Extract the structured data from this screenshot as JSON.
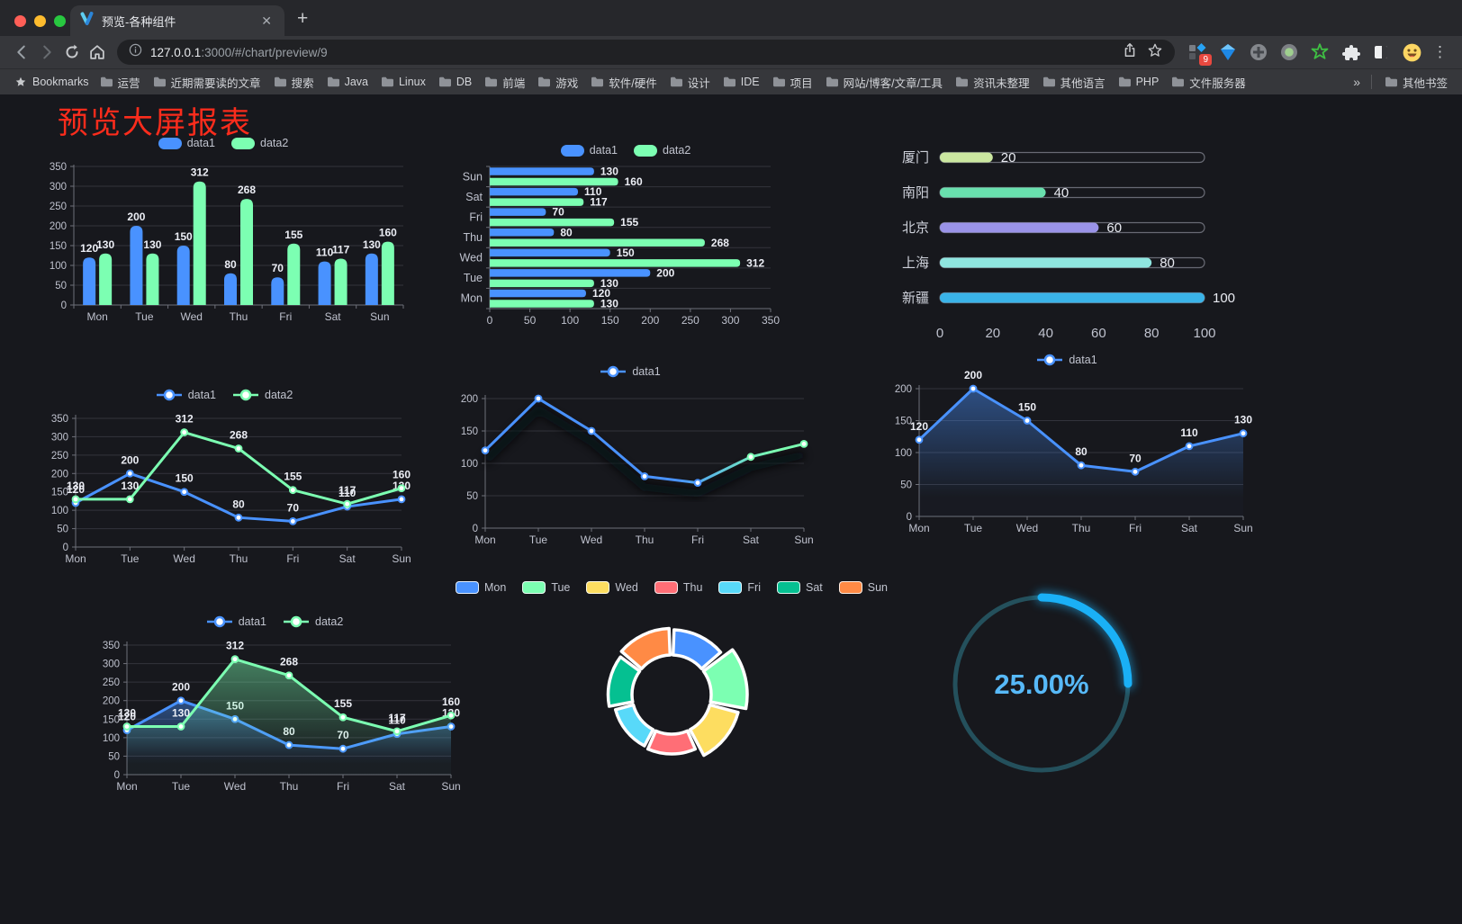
{
  "browser": {
    "tab": {
      "title": "预览-各种组件"
    },
    "url": {
      "host": "127.0.0.1",
      "rest": ":3000/#/chart/preview/9"
    },
    "icons": {
      "close": "✕",
      "new_tab": "+",
      "menu": "⋮",
      "overflow": "»"
    },
    "toolbar_icons": [
      "back",
      "forward",
      "refresh",
      "home",
      "info",
      "share",
      "bookmark-star"
    ],
    "extension_icons": [
      "extension-grid",
      "vue-devtools",
      "circle-cross",
      "circle-dot",
      "green-star",
      "puzzle",
      "split-square",
      "emoji",
      "menu-kebab"
    ],
    "extension_badge": "9",
    "bookmarks_label": "Bookmarks",
    "bookmarks": [
      "运营",
      "近期需要读的文章",
      "搜索",
      "Java",
      "Linux",
      "DB",
      "前端",
      "游戏",
      "软件/硬件",
      "设计",
      "IDE",
      "项目",
      "网站/博客/文章/工具",
      "资讯未整理",
      "其他语言",
      "PHP",
      "文件服务器"
    ],
    "other_bookmarks": "其他书签"
  },
  "page": {
    "title": "预览大屏报表",
    "title_color": "#fb2c1c"
  },
  "chart_data": [
    {
      "id": "bar-grouped",
      "type": "bar",
      "categories": [
        "Mon",
        "Tue",
        "Wed",
        "Thu",
        "Fri",
        "Sat",
        "Sun"
      ],
      "series": [
        {
          "name": "data1",
          "color": "#4992ff",
          "values": [
            120,
            200,
            150,
            80,
            70,
            110,
            130
          ]
        },
        {
          "name": "data2",
          "color": "#7cffb2",
          "values": [
            130,
            130,
            312,
            268,
            155,
            117,
            160
          ]
        }
      ],
      "ylim": [
        0,
        350
      ],
      "ytick": 50,
      "value_labels": true,
      "legend_position": "top"
    },
    {
      "id": "bar-horizontal",
      "type": "bar-horizontal",
      "categories": [
        "Mon",
        "Tue",
        "Wed",
        "Thu",
        "Fri",
        "Sat",
        "Sun"
      ],
      "series": [
        {
          "name": "data1",
          "color": "#4992ff",
          "values": [
            120,
            200,
            150,
            80,
            70,
            110,
            130
          ]
        },
        {
          "name": "data2",
          "color": "#7cffb2",
          "values": [
            130,
            130,
            312,
            268,
            155,
            117,
            160
          ]
        }
      ],
      "xlim": [
        0,
        350
      ],
      "xtick": 50,
      "value_labels": true,
      "legend_position": "top"
    },
    {
      "id": "progress",
      "type": "progress",
      "categories": [
        "厦门",
        "南阳",
        "北京",
        "上海",
        "新疆"
      ],
      "values": [
        20,
        40,
        60,
        80,
        100
      ],
      "colors": [
        "#cbe7a0",
        "#69e0ae",
        "#9a93e8",
        "#8fe6e0",
        "#3ab3e8"
      ],
      "xlim": [
        0,
        100
      ],
      "xticks": [
        0,
        20,
        40,
        60,
        80,
        100
      ]
    },
    {
      "id": "line-two",
      "type": "line",
      "categories": [
        "Mon",
        "Tue",
        "Wed",
        "Thu",
        "Fri",
        "Sat",
        "Sun"
      ],
      "series": [
        {
          "name": "data1",
          "color": "#4992ff",
          "values": [
            120,
            200,
            150,
            80,
            70,
            110,
            130
          ],
          "labels": true
        },
        {
          "name": "data2",
          "color": "#7cffb2",
          "values": [
            130,
            130,
            312,
            268,
            155,
            117,
            160
          ],
          "labels": true
        }
      ],
      "ylim": [
        0,
        350
      ],
      "ytick": 50
    },
    {
      "id": "line-gradient",
      "type": "line",
      "categories": [
        "Mon",
        "Tue",
        "Wed",
        "Thu",
        "Fri",
        "Sat",
        "Sun"
      ],
      "series": [
        {
          "name": "data1",
          "gradient": [
            "#4992ff",
            "#7cffb2"
          ],
          "values": [
            120,
            200,
            150,
            80,
            70,
            110,
            130
          ],
          "labels": false
        }
      ],
      "ylim": [
        0,
        200
      ],
      "ytick": 50,
      "shadow": true,
      "pad_top": 18
    },
    {
      "id": "area-one",
      "type": "line",
      "categories": [
        "Mon",
        "Tue",
        "Wed",
        "Thu",
        "Fri",
        "Sat",
        "Sun"
      ],
      "series": [
        {
          "name": "data1",
          "color": "#4992ff",
          "values": [
            120,
            200,
            150,
            80,
            70,
            110,
            130
          ],
          "labels": true,
          "area": true
        }
      ],
      "ylim": [
        0,
        200
      ],
      "ytick": 50,
      "pad_top": 20
    },
    {
      "id": "line-two-area",
      "type": "line",
      "categories": [
        "Mon",
        "Tue",
        "Wed",
        "Thu",
        "Fri",
        "Sat",
        "Sun"
      ],
      "series": [
        {
          "name": "data1",
          "color": "#4992ff",
          "values": [
            120,
            200,
            150,
            80,
            70,
            110,
            130
          ],
          "labels": true,
          "area": true
        },
        {
          "name": "data2",
          "color": "#7cffb2",
          "values": [
            130,
            130,
            312,
            268,
            155,
            117,
            160
          ],
          "labels": true,
          "area": true
        }
      ],
      "ylim": [
        0,
        350
      ],
      "ytick": 50
    },
    {
      "id": "rose-pie",
      "type": "pie",
      "categories": [
        "Mon",
        "Tue",
        "Wed",
        "Thu",
        "Fri",
        "Sat",
        "Sun"
      ],
      "values": [
        120,
        200,
        150,
        80,
        70,
        110,
        130
      ],
      "colors": [
        "#4992ff",
        "#7cffb2",
        "#fddd60",
        "#ff6e76",
        "#58d9f9",
        "#05c091",
        "#ff8a45"
      ],
      "rose": true,
      "border_color": "#ffffff"
    },
    {
      "id": "gauge",
      "type": "gauge",
      "label": "25.00%",
      "percent": 25,
      "color": "#1ab0f6",
      "track_color": "#24505c",
      "text_color": "#57b9f8"
    }
  ]
}
